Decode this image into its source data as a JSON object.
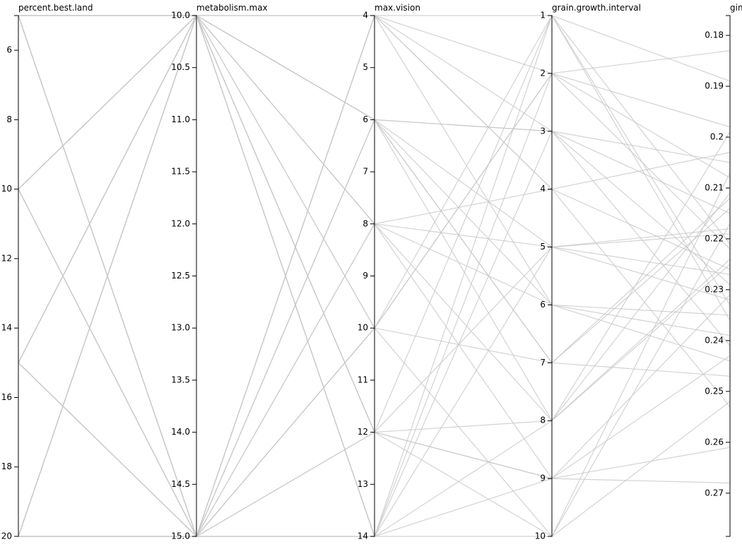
{
  "chart_data": {
    "type": "parallel",
    "color": "#c8c8c8",
    "dimensions": [
      {
        "name": "percent.best.land",
        "ylim": [
          5,
          20
        ],
        "yticks": [
          6,
          8,
          10,
          12,
          14,
          16,
          18,
          20
        ]
      },
      {
        "name": "metabolism.max",
        "ylim": [
          10,
          15
        ],
        "yticks": [
          {
            "value": 10,
            "label": "10.0"
          },
          {
            "value": 10.5,
            "label": "10.5"
          },
          {
            "value": 11,
            "label": "11.0"
          },
          {
            "value": 11.5,
            "label": "11.5"
          },
          {
            "value": 12,
            "label": "12.0"
          },
          {
            "value": 12.5,
            "label": "12.5"
          },
          {
            "value": 13,
            "label": "13.0"
          },
          {
            "value": 13.5,
            "label": "13.5"
          },
          {
            "value": 14,
            "label": "14.0"
          },
          {
            "value": 14.5,
            "label": "14.5"
          },
          {
            "value": 15,
            "label": "15.0"
          }
        ]
      },
      {
        "name": "max.vision",
        "ylim": [
          4,
          14
        ],
        "yticks": [
          4,
          5,
          6,
          7,
          8,
          9,
          10,
          11,
          12,
          13,
          14
        ]
      },
      {
        "name": "grain.growth.interval",
        "ylim": [
          1,
          10
        ],
        "yticks": [
          1,
          2,
          3,
          4,
          5,
          6,
          7,
          8,
          9,
          10
        ]
      },
      {
        "name": "gini",
        "ylim": [
          0.1761,
          0.2785
        ],
        "yticks": [
          0.18,
          0.19,
          0.2,
          0.21,
          0.22,
          0.23,
          0.24,
          0.25,
          0.26,
          0.27
        ]
      }
    ],
    "rows": [
      [
        5,
        15,
        4,
        1,
        0.221
      ],
      [
        5,
        15,
        6,
        3,
        0.205
      ],
      [
        5,
        10,
        8,
        5,
        0.232
      ],
      [
        10,
        10,
        10,
        7,
        0.214
      ],
      [
        10,
        15,
        12,
        9,
        0.243
      ],
      [
        10,
        10,
        14,
        2,
        0.198
      ],
      [
        15,
        10,
        4,
        4,
        0.226
      ],
      [
        15,
        15,
        6,
        6,
        0.239
      ],
      [
        15,
        10,
        8,
        8,
        0.211
      ],
      [
        20,
        10,
        10,
        10,
        0.252
      ],
      [
        20,
        10,
        12,
        1,
        0.189
      ],
      [
        20,
        10,
        14,
        3,
        0.229
      ],
      [
        5,
        15,
        14,
        5,
        0.218
      ],
      [
        10,
        10,
        4,
        6,
        0.235
      ],
      [
        15,
        15,
        10,
        2,
        0.208
      ],
      [
        20,
        15,
        6,
        7,
        0.247
      ],
      [
        5,
        10,
        12,
        8,
        0.224
      ],
      [
        10,
        15,
        8,
        9,
        0.261
      ],
      [
        15,
        10,
        14,
        10,
        0.217
      ],
      [
        20,
        15,
        4,
        4,
        0.203
      ],
      [
        5,
        15,
        10,
        1,
        0.236
      ],
      [
        10,
        10,
        6,
        3,
        0.215
      ],
      [
        15,
        15,
        12,
        5,
        0.227
      ],
      [
        20,
        10,
        8,
        6,
        0.244
      ],
      [
        5,
        10,
        6,
        7,
        0.212
      ],
      [
        10,
        15,
        14,
        8,
        0.199
      ],
      [
        15,
        10,
        12,
        9,
        0.231
      ],
      [
        20,
        15,
        10,
        2,
        0.222
      ],
      [
        5,
        15,
        8,
        4,
        0.253
      ],
      [
        10,
        10,
        12,
        10,
        0.207
      ],
      [
        15,
        15,
        4,
        3,
        0.241
      ],
      [
        20,
        10,
        6,
        5,
        0.219
      ],
      [
        5,
        10,
        14,
        9,
        0.268
      ],
      [
        10,
        15,
        4,
        2,
        0.183
      ],
      [
        15,
        10,
        6,
        8,
        0.225
      ],
      [
        20,
        15,
        14,
        1,
        0.233
      ]
    ]
  }
}
